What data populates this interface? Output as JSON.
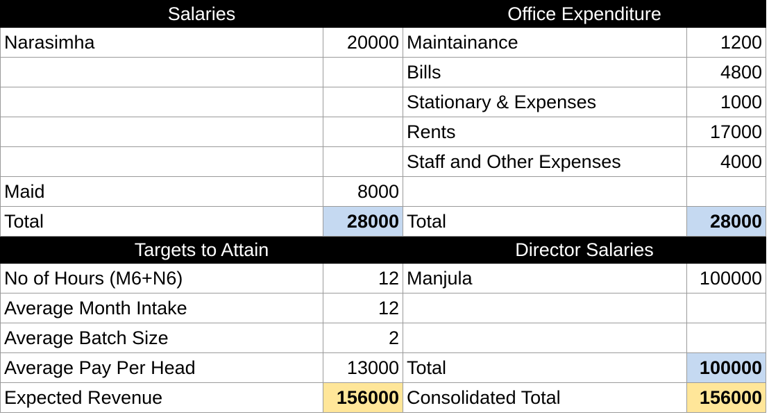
{
  "salaries": {
    "header": "Salaries",
    "rows": [
      {
        "name": "Narasimha",
        "amount": "20000"
      },
      {
        "name": "",
        "amount": ""
      },
      {
        "name": "",
        "amount": ""
      },
      {
        "name": "",
        "amount": ""
      },
      {
        "name": "",
        "amount": ""
      },
      {
        "name": "Maid",
        "amount": "8000"
      }
    ],
    "total_label": "Total",
    "total_value": "28000"
  },
  "office": {
    "header": "Office Expenditure",
    "rows": [
      {
        "name": "Maintainance",
        "amount": "1200"
      },
      {
        "name": "Bills",
        "amount": "4800"
      },
      {
        "name": "Stationary & Expenses",
        "amount": "1000"
      },
      {
        "name": "Rents",
        "amount": "17000"
      },
      {
        "name": "Staff and Other Expenses",
        "amount": "4000"
      },
      {
        "name": "",
        "amount": ""
      }
    ],
    "total_label": "Total",
    "total_value": "28000"
  },
  "targets": {
    "header": "Targets to Attain",
    "rows": [
      {
        "name": "No of Hours (M6+N6)",
        "amount": "12"
      },
      {
        "name": "Average Month Intake",
        "amount": "12"
      },
      {
        "name": "Average Batch Size",
        "amount": "2"
      },
      {
        "name": "Average Pay Per Head",
        "amount": "13000"
      }
    ],
    "result_label": "Expected Revenue",
    "result_value": "156000"
  },
  "directors": {
    "header": "Director Salaries",
    "rows": [
      {
        "name": "Manjula",
        "amount": "100000"
      },
      {
        "name": "",
        "amount": ""
      },
      {
        "name": "",
        "amount": ""
      }
    ],
    "total_label": "Total",
    "total_value": "100000",
    "consolidated_label": "Consolidated Total",
    "consolidated_value": "156000"
  },
  "colors": {
    "header_bg": "#000000",
    "total_highlight": "#c5d9f1",
    "revenue_highlight": "#ffe699"
  }
}
